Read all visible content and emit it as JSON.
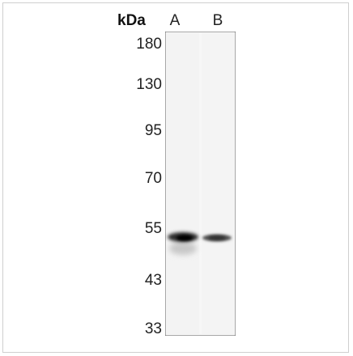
{
  "blot": {
    "unit": "kDa",
    "lanes": [
      "A",
      "B"
    ],
    "markers": [
      "180",
      "130",
      "95",
      "70",
      "55",
      "43",
      "33"
    ]
  }
}
